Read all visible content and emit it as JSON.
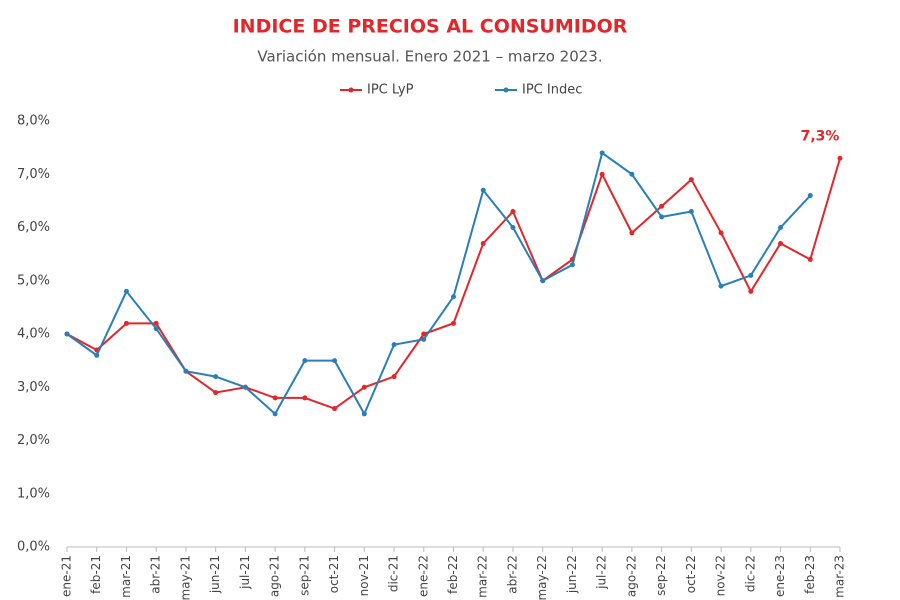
{
  "chart_data": {
    "type": "line",
    "title": "INDICE DE PRECIOS AL CONSUMIDOR",
    "subtitle": "Variación mensual. Enero 2021 – marzo 2023.",
    "categories": [
      "ene-21",
      "feb-21",
      "mar-21",
      "abr-21",
      "may-21",
      "jun-21",
      "jul-21",
      "ago-21",
      "sep-21",
      "oct-21",
      "nov-21",
      "dic-21",
      "ene-22",
      "feb-22",
      "mar-22",
      "abr-22",
      "may-22",
      "jun-22",
      "jul-22",
      "ago-22",
      "sep-22",
      "oct-22",
      "nov-22",
      "dic-22",
      "ene-23",
      "feb-23",
      "mar-23"
    ],
    "series": [
      {
        "name": "IPC LyP",
        "color": "#e3262b",
        "values": [
          4.0,
          3.7,
          4.2,
          4.2,
          3.3,
          2.9,
          3.0,
          2.8,
          2.8,
          2.6,
          3.0,
          3.2,
          4.0,
          4.2,
          5.7,
          6.3,
          5.0,
          5.4,
          7.0,
          5.9,
          6.4,
          6.9,
          5.9,
          4.8,
          5.7,
          5.4,
          7.3
        ],
        "value_labels": [
          null,
          null,
          null,
          null,
          null,
          null,
          null,
          null,
          null,
          null,
          null,
          null,
          null,
          null,
          null,
          null,
          null,
          null,
          null,
          null,
          null,
          null,
          null,
          null,
          null,
          null,
          "7,3%"
        ]
      },
      {
        "name": "IPC Indec",
        "color": "#2a7fb8",
        "values": [
          4.0,
          3.6,
          4.8,
          4.1,
          3.3,
          3.2,
          3.0,
          2.5,
          3.5,
          3.5,
          2.5,
          3.8,
          3.9,
          4.7,
          6.7,
          6.0,
          5.0,
          5.3,
          7.4,
          7.0,
          6.2,
          6.3,
          4.9,
          5.1,
          6.0,
          6.6,
          null
        ]
      }
    ],
    "ylim": [
      0,
      8
    ],
    "yticks": [
      {
        "value": 0,
        "label": "0,0%"
      },
      {
        "value": 1,
        "label": "1,0%"
      },
      {
        "value": 2,
        "label": "2,0%"
      },
      {
        "value": 3,
        "label": "3,0%"
      },
      {
        "value": 4,
        "label": "4,0%"
      },
      {
        "value": 5,
        "label": "5,0%"
      },
      {
        "value": 6,
        "label": "6,0%"
      },
      {
        "value": 7,
        "label": "7,0%"
      },
      {
        "value": 8,
        "label": "8,0%"
      }
    ],
    "legend": "top"
  }
}
